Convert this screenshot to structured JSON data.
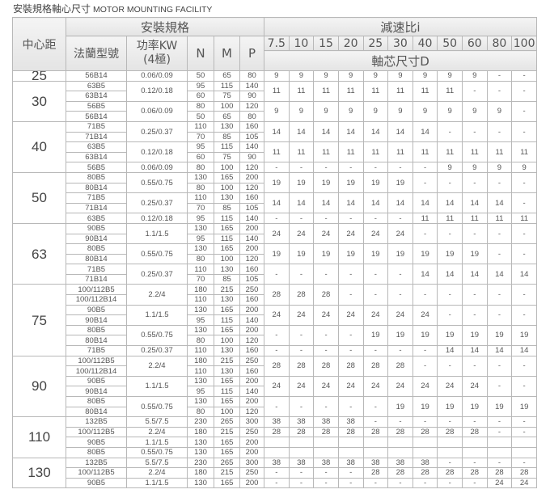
{
  "title": {
    "zh": "安裝規格軸心尺寸",
    "en": "MOTOR MOUNTING FACILITY"
  },
  "header": {
    "center_distance": "中心距",
    "mounting_spec": "安裝規格",
    "flange_type": "法蘭型號",
    "power": "功率KW",
    "power_poles": "(4極)",
    "n": "N",
    "m": "M",
    "p": "P",
    "ratio": "減速比i",
    "shaft_size": "軸芯尺寸D",
    "ratios": [
      "7.5",
      "10",
      "15",
      "20",
      "25",
      "30",
      "40",
      "50",
      "60",
      "80",
      "100"
    ]
  },
  "groups": [
    {
      "center": "25",
      "blocks": [
        {
          "power": "0.06/0.09",
          "flanges": [
            {
              "name": "56B14",
              "N": "50",
              "M": "65",
              "P": "80"
            }
          ],
          "d": [
            "9",
            "9",
            "9",
            "9",
            "9",
            "9",
            "9",
            "9",
            "9",
            "-",
            "-"
          ]
        }
      ]
    },
    {
      "center": "30",
      "blocks": [
        {
          "power": "0.12/0.18",
          "flanges": [
            {
              "name": "63B5",
              "N": "95",
              "M": "115",
              "P": "140"
            },
            {
              "name": "63B14",
              "N": "60",
              "M": "75",
              "P": "90"
            }
          ],
          "d": [
            "11",
            "11",
            "11",
            "11",
            "11",
            "11",
            "11",
            "11",
            "-",
            "-",
            "-"
          ]
        },
        {
          "power": "0.06/0.09",
          "flanges": [
            {
              "name": "56B5",
              "N": "80",
              "M": "100",
              "P": "120"
            },
            {
              "name": "56B14",
              "N": "50",
              "M": "65",
              "P": "80"
            }
          ],
          "d": [
            "9",
            "9",
            "9",
            "9",
            "9",
            "9",
            "9",
            "9",
            "9",
            "9",
            "-"
          ]
        }
      ]
    },
    {
      "center": "40",
      "blocks": [
        {
          "power": "0.25/0.37",
          "flanges": [
            {
              "name": "71B5",
              "N": "110",
              "M": "130",
              "P": "160"
            },
            {
              "name": "71B14",
              "N": "70",
              "M": "85",
              "P": "105"
            }
          ],
          "d": [
            "14",
            "14",
            "14",
            "14",
            "14",
            "14",
            "14",
            "-",
            "-",
            "-",
            "-"
          ]
        },
        {
          "power": "0.12/0.18",
          "flanges": [
            {
              "name": "63B5",
              "N": "95",
              "M": "115",
              "P": "140"
            },
            {
              "name": "63B14",
              "N": "60",
              "M": "75",
              "P": "90"
            }
          ],
          "d": [
            "11",
            "11",
            "11",
            "11",
            "11",
            "11",
            "11",
            "11",
            "11",
            "11",
            "11"
          ]
        },
        {
          "power": "0.06/0.09",
          "flanges": [
            {
              "name": "56B5",
              "N": "80",
              "M": "100",
              "P": "120"
            }
          ],
          "d": [
            "-",
            "-",
            "-",
            "-",
            "-",
            "-",
            "-",
            "9",
            "9",
            "9",
            "9"
          ]
        }
      ]
    },
    {
      "center": "50",
      "blocks": [
        {
          "power": "0.55/0.75",
          "flanges": [
            {
              "name": "80B5",
              "N": "130",
              "M": "165",
              "P": "200"
            },
            {
              "name": "80B14",
              "N": "80",
              "M": "100",
              "P": "120"
            }
          ],
          "d": [
            "19",
            "19",
            "19",
            "19",
            "19",
            "19",
            "-",
            "-",
            "-",
            "-",
            "-"
          ]
        },
        {
          "power": "0.25/0.37",
          "flanges": [
            {
              "name": "71B5",
              "N": "110",
              "M": "130",
              "P": "160"
            },
            {
              "name": "71B14",
              "N": "70",
              "M": "85",
              "P": "105"
            }
          ],
          "d": [
            "14",
            "14",
            "14",
            "14",
            "14",
            "14",
            "14",
            "14",
            "14",
            "14",
            "-"
          ]
        },
        {
          "power": "0.12/0.18",
          "flanges": [
            {
              "name": "63B5",
              "N": "95",
              "M": "115",
              "P": "140"
            }
          ],
          "d": [
            "-",
            "-",
            "-",
            "-",
            "-",
            "-",
            "11",
            "11",
            "11",
            "11",
            "11"
          ]
        }
      ]
    },
    {
      "center": "63",
      "blocks": [
        {
          "power": "1.1/1.5",
          "flanges": [
            {
              "name": "90B5",
              "N": "130",
              "M": "165",
              "P": "200"
            },
            {
              "name": "90B14",
              "N": "95",
              "M": "115",
              "P": "140"
            }
          ],
          "d": [
            "24",
            "24",
            "24",
            "24",
            "24",
            "24",
            "-",
            "-",
            "-",
            "-",
            "-"
          ]
        },
        {
          "power": "0.55/0.75",
          "flanges": [
            {
              "name": "80B5",
              "N": "130",
              "M": "165",
              "P": "200"
            },
            {
              "name": "80B14",
              "N": "80",
              "M": "100",
              "P": "120"
            }
          ],
          "d": [
            "19",
            "19",
            "19",
            "19",
            "19",
            "19",
            "19",
            "19",
            "19",
            "-",
            "-"
          ]
        },
        {
          "power": "0.25/0.37",
          "flanges": [
            {
              "name": "71B5",
              "N": "110",
              "M": "130",
              "P": "160"
            },
            {
              "name": "71B14",
              "N": "70",
              "M": "85",
              "P": "105"
            }
          ],
          "d": [
            "-",
            "-",
            "-",
            "-",
            "-",
            "-",
            "14",
            "14",
            "14",
            "14",
            "14"
          ]
        }
      ]
    },
    {
      "center": "75",
      "blocks": [
        {
          "power": "2.2/4",
          "flanges": [
            {
              "name": "100/112B5",
              "N": "180",
              "M": "215",
              "P": "250"
            },
            {
              "name": "100/112B14",
              "N": "110",
              "M": "130",
              "P": "160"
            }
          ],
          "d": [
            "28",
            "28",
            "28",
            "-",
            "-",
            "-",
            "-",
            "-",
            "-",
            "-",
            "-"
          ]
        },
        {
          "power": "1.1/1.5",
          "flanges": [
            {
              "name": "90B5",
              "N": "130",
              "M": "165",
              "P": "200"
            },
            {
              "name": "90B14",
              "N": "95",
              "M": "115",
              "P": "140"
            }
          ],
          "d": [
            "24",
            "24",
            "24",
            "24",
            "24",
            "24",
            "24",
            "-",
            "-",
            "-",
            "-"
          ]
        },
        {
          "power": "0.55/0.75",
          "flanges": [
            {
              "name": "80B5",
              "N": "130",
              "M": "165",
              "P": "200"
            },
            {
              "name": "80B14",
              "N": "80",
              "M": "100",
              "P": "120"
            }
          ],
          "d": [
            "-",
            "-",
            "-",
            "-",
            "19",
            "19",
            "19",
            "19",
            "19",
            "19",
            "19"
          ]
        },
        {
          "power": "0.25/0.37",
          "flanges": [
            {
              "name": "71B5",
              "N": "110",
              "M": "130",
              "P": "160"
            }
          ],
          "d": [
            "-",
            "-",
            "-",
            "-",
            "-",
            "-",
            "-",
            "14",
            "14",
            "14",
            "14"
          ]
        }
      ]
    },
    {
      "center": "90",
      "blocks": [
        {
          "power": "2.2/4",
          "flanges": [
            {
              "name": "100/112B5",
              "N": "180",
              "M": "215",
              "P": "250"
            },
            {
              "name": "100/112B14",
              "N": "110",
              "M": "130",
              "P": "160"
            }
          ],
          "d": [
            "28",
            "28",
            "28",
            "28",
            "28",
            "28",
            "-",
            "-",
            "-",
            "-",
            "-"
          ]
        },
        {
          "power": "1.1/1.5",
          "flanges": [
            {
              "name": "90B5",
              "N": "130",
              "M": "165",
              "P": "200"
            },
            {
              "name": "90B14",
              "N": "95",
              "M": "115",
              "P": "140"
            }
          ],
          "d": [
            "24",
            "24",
            "24",
            "24",
            "24",
            "24",
            "24",
            "24",
            "24",
            "-",
            "-"
          ]
        },
        {
          "power": "0.55/0.75",
          "flanges": [
            {
              "name": "80B5",
              "N": "130",
              "M": "165",
              "P": "200"
            },
            {
              "name": "80B14",
              "N": "80",
              "M": "100",
              "P": "120"
            }
          ],
          "d": [
            "-",
            "-",
            "-",
            "-",
            "-",
            "19",
            "19",
            "19",
            "19",
            "19",
            "19"
          ]
        }
      ]
    },
    {
      "center": "110",
      "blocks": [
        {
          "power": "5.5/7.5",
          "flanges": [
            {
              "name": "132B5",
              "N": "230",
              "M": "265",
              "P": "300"
            }
          ],
          "d": [
            "38",
            "38",
            "38",
            "38",
            "-",
            "-",
            "-",
            "-",
            "-",
            "-",
            "-"
          ]
        },
        {
          "power": "2.2/4",
          "flanges": [
            {
              "name": "100/112B5",
              "N": "180",
              "M": "215",
              "P": "250"
            }
          ],
          "d": [
            "28",
            "28",
            "28",
            "28",
            "28",
            "28",
            "28",
            "28",
            "28",
            "-",
            "-"
          ]
        },
        {
          "power": "1.1/1.5",
          "flanges": [
            {
              "name": "90B5",
              "N": "130",
              "M": "165",
              "P": "200"
            }
          ],
          "d": [
            "",
            "",
            "",
            "",
            "",
            "",
            "",
            "",
            "",
            "",
            ""
          ]
        },
        {
          "power": "0.55/0.75",
          "flanges": [
            {
              "name": "80B5",
              "N": "130",
              "M": "165",
              "P": "200"
            }
          ],
          "d": [
            "",
            "",
            "",
            "",
            "",
            "",
            "",
            "",
            "",
            "",
            ""
          ]
        }
      ]
    },
    {
      "center": "130",
      "blocks": [
        {
          "power": "5.5/7.5",
          "flanges": [
            {
              "name": "132B5",
              "N": "230",
              "M": "265",
              "P": "300"
            }
          ],
          "d": [
            "38",
            "38",
            "38",
            "38",
            "38",
            "38",
            "38",
            "-",
            "-",
            "-",
            "-"
          ]
        },
        {
          "power": "2.2/4",
          "flanges": [
            {
              "name": "100/112B5",
              "N": "180",
              "M": "215",
              "P": "250"
            }
          ],
          "d": [
            "-",
            "-",
            "-",
            "-",
            "28",
            "28",
            "28",
            "28",
            "28",
            "28",
            "28"
          ]
        },
        {
          "power": "1.1/1.5",
          "flanges": [
            {
              "name": "90B5",
              "N": "130",
              "M": "165",
              "P": "200"
            }
          ],
          "d": [
            "-",
            "-",
            "-",
            "-",
            "-",
            "-",
            "-",
            "-",
            "-",
            "24",
            "24"
          ]
        }
      ]
    }
  ]
}
